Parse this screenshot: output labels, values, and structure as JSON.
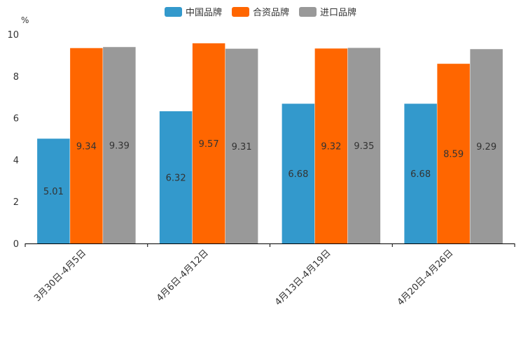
{
  "chart_data": {
    "type": "bar",
    "unit": "%",
    "categories": [
      "3月30日-4月5日",
      "4月6日-4月12日",
      "4月13日-4月19日",
      "4月20日-4月26日"
    ],
    "series": [
      {
        "name": "中国品牌",
        "color": "#3399cc",
        "values": [
          5.01,
          6.32,
          6.68,
          6.68
        ]
      },
      {
        "name": "合资品牌",
        "color": "#ff6600",
        "values": [
          9.34,
          9.57,
          9.32,
          8.59
        ]
      },
      {
        "name": "进口品牌",
        "color": "#999999",
        "values": [
          9.39,
          9.31,
          9.35,
          9.29
        ]
      }
    ],
    "ylim": [
      0,
      10
    ],
    "yticks": [
      0,
      2,
      4,
      6,
      8,
      10
    ],
    "legend_position": "top-center"
  }
}
